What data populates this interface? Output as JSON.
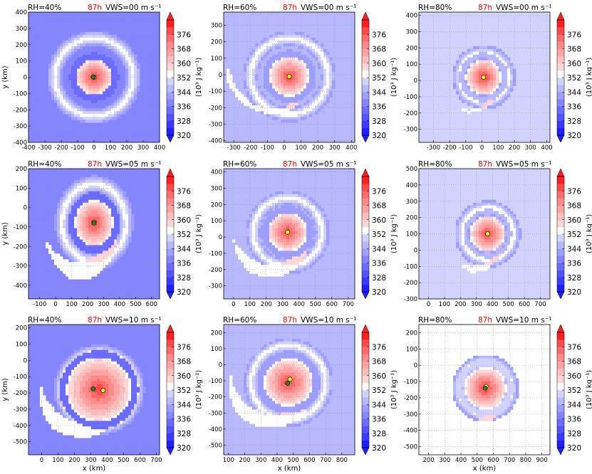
{
  "figure": {
    "colorbar": {
      "label": "(10³ J kg⁻¹)",
      "ticks": [
        320,
        328,
        336,
        344,
        352,
        360,
        368,
        376
      ],
      "levels": [
        320,
        324,
        328,
        332,
        336,
        340,
        344,
        348,
        352,
        356,
        360,
        364,
        368,
        372,
        376,
        380
      ],
      "colors": [
        "#1e1eff",
        "#3a3aff",
        "#5252ff",
        "#6b6bff",
        "#8585ff",
        "#9e9eff",
        "#b8b8ff",
        "#d2d2ff",
        "#ffffff",
        "#ffd6d6",
        "#ffbdbd",
        "#ffa3a3",
        "#ff8a8a",
        "#ff6b6b",
        "#ff4a4a",
        "#ff1e1e"
      ]
    },
    "xlabel": "x (km)",
    "ylabel": "y (km)"
  },
  "chart_data": [
    {
      "type": "heatmap",
      "panel": "rh40-vws00",
      "rh_label": "RH=40%",
      "time_label": "87h",
      "vws_label": "VWS=00 m s⁻¹",
      "xlim": [
        -400,
        400
      ],
      "ylim": [
        -400,
        400
      ],
      "xticks": [
        -400,
        -300,
        -200,
        -100,
        0,
        100,
        200,
        300,
        400
      ],
      "yticks": [
        -400,
        -300,
        -200,
        -100,
        0,
        100,
        200,
        300,
        400
      ],
      "center": [
        0,
        0
      ],
      "markers": [
        {
          "color": "yellow",
          "x": 0,
          "y": 0
        },
        {
          "color": "green",
          "x": -5,
          "y": 2
        }
      ],
      "ring_radius": 240,
      "core_radius": 110,
      "spiral": 0.0,
      "env": 336
    },
    {
      "type": "heatmap",
      "panel": "rh60-vws00",
      "rh_label": "RH=60%",
      "time_label": "87h",
      "vws_label": "VWS=00 m s⁻¹",
      "xlim": [
        -360,
        420
      ],
      "ylim": [
        -410,
        380
      ],
      "xticks": [
        -300,
        -200,
        -100,
        0,
        100,
        200,
        300,
        400
      ],
      "yticks": [
        -400,
        -300,
        -200,
        -100,
        0,
        100,
        200,
        300
      ],
      "center": [
        30,
        -10
      ],
      "markers": [
        {
          "color": "yellow",
          "x": 30,
          "y": -10
        }
      ],
      "ring_radius": 230,
      "core_radius": 120,
      "spiral": 0.3,
      "env": 344
    },
    {
      "type": "heatmap",
      "panel": "rh80-vws00",
      "rh_label": "RH=80%",
      "time_label": "87h",
      "vws_label": "VWS=00 m s⁻¹",
      "xlim": [
        -390,
        420
      ],
      "ylim": [
        -380,
        420
      ],
      "xticks": [
        -300,
        -200,
        -100,
        0,
        100,
        200,
        300,
        400
      ],
      "yticks": [
        -300,
        -200,
        -100,
        0,
        100,
        200,
        300,
        400
      ],
      "center": [
        10,
        20
      ],
      "markers": [
        {
          "color": "yellow",
          "x": 10,
          "y": 20
        }
      ],
      "ring_radius": 150,
      "core_radius": 110,
      "spiral": 0.2,
      "env": 348
    },
    {
      "type": "heatmap",
      "panel": "rh40-vws05",
      "rh_label": "RH=40%",
      "time_label": "87h",
      "vws_label": "VWS=05 m s⁻¹",
      "xlim": [
        -170,
        650
      ],
      "ylim": [
        -470,
        200
      ],
      "xticks": [
        -100,
        0,
        100,
        200,
        300,
        400,
        500,
        600
      ],
      "yticks": [
        -400,
        -300,
        -200,
        -100,
        0,
        100,
        200
      ],
      "center": [
        240,
        -80
      ],
      "markers": [
        {
          "color": "yellow",
          "x": 240,
          "y": -75
        },
        {
          "color": "green",
          "x": 240,
          "y": -80
        }
      ],
      "ring_radius": 200,
      "core_radius": 120,
      "spiral": 1.0,
      "env": 336
    },
    {
      "type": "heatmap",
      "panel": "rh60-vws05",
      "rh_label": "RH=60%",
      "time_label": "87h",
      "vws_label": "VWS=05 m s⁻¹",
      "xlim": [
        -60,
        740
      ],
      "ylim": [
        -380,
        420
      ],
      "xticks": [
        0,
        100,
        200,
        300,
        400,
        500,
        600,
        700
      ],
      "yticks": [
        -300,
        -200,
        -100,
        0,
        100,
        200,
        300,
        400
      ],
      "center": [
        330,
        30
      ],
      "markers": [
        {
          "color": "yellow",
          "x": 330,
          "y": 30
        }
      ],
      "ring_radius": 210,
      "core_radius": 120,
      "spiral": 0.8,
      "env": 344
    },
    {
      "type": "heatmap",
      "panel": "rh80-vws05",
      "rh_label": "RH=80%",
      "time_label": "87h",
      "vws_label": "VWS=05 m s⁻¹",
      "xlim": [
        -60,
        760
      ],
      "ylim": [
        -300,
        500
      ],
      "xticks": [
        0,
        100,
        200,
        300,
        400,
        500,
        600,
        700
      ],
      "yticks": [
        -300,
        -200,
        -100,
        0,
        100,
        200,
        300,
        400,
        500
      ],
      "center": [
        370,
        100
      ],
      "markers": [
        {
          "color": "yellow",
          "x": 370,
          "y": 100
        }
      ],
      "ring_radius": 160,
      "core_radius": 110,
      "spiral": 0.4,
      "env": 348
    },
    {
      "type": "heatmap",
      "panel": "rh40-vws10",
      "rh_label": "RH=40%",
      "time_label": "87h",
      "vws_label": "VWS=10 m s⁻¹",
      "xlim": [
        -80,
        720
      ],
      "ylim": [
        -580,
        220
      ],
      "xticks": [
        0,
        100,
        200,
        300,
        400,
        500,
        600,
        700
      ],
      "yticks": [
        -500,
        -400,
        -300,
        -200,
        -100,
        0,
        100,
        200
      ],
      "center": [
        350,
        -180
      ],
      "markers": [
        {
          "color": "green",
          "x": 315,
          "y": -175
        },
        {
          "color": "yellow",
          "x": 375,
          "y": -185
        }
      ],
      "ring_radius": 230,
      "core_radius": 200,
      "spiral": 1.0,
      "env": 336
    },
    {
      "type": "heatmap",
      "panel": "rh60-vws10",
      "rh_label": "RH=60%",
      "time_label": "87h",
      "vws_label": "VWS=10 m s⁻¹",
      "xlim": [
        70,
        880
      ],
      "ylim": [
        -560,
        250
      ],
      "xticks": [
        100,
        200,
        300,
        400,
        500,
        600,
        700,
        800
      ],
      "yticks": [
        -500,
        -400,
        -300,
        -200,
        -100,
        0,
        100,
        200
      ],
      "center": [
        470,
        -110
      ],
      "markers": [
        {
          "color": "yellow",
          "x": 480,
          "y": -90
        },
        {
          "color": "green",
          "x": 465,
          "y": -115
        }
      ],
      "ring_radius": 230,
      "core_radius": 150,
      "spiral": 0.9,
      "env": 344
    },
    {
      "type": "heatmap",
      "panel": "rh80-vws10",
      "rh_label": "RH=80%",
      "time_label": "87h",
      "vws_label": "VWS=10 m s⁻¹",
      "xlim": [
        140,
        950
      ],
      "ylim": [
        -550,
        250
      ],
      "xticks": [
        200,
        300,
        400,
        500,
        600,
        700,
        800,
        900
      ],
      "yticks": [
        -500,
        -400,
        -300,
        -200,
        -100,
        0,
        100,
        200
      ],
      "center": [
        550,
        -140
      ],
      "markers": [
        {
          "color": "yellow",
          "x": 555,
          "y": -130
        },
        {
          "color": "green",
          "x": 550,
          "y": -140
        }
      ],
      "ring_radius": 160,
      "core_radius": 130,
      "spiral": 0.5,
      "env": 352
    }
  ]
}
